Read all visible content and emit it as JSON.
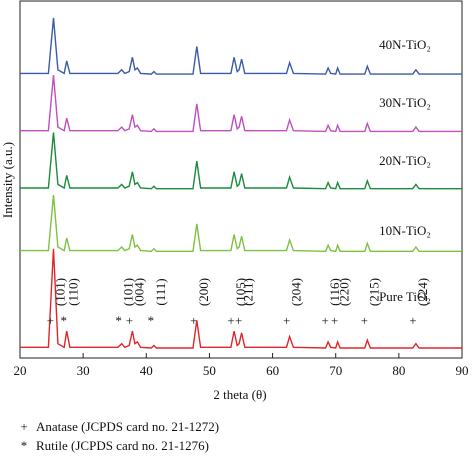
{
  "chart_data": {
    "type": "line",
    "xlabel": "2 theta (θ)",
    "ylabel": "Intensity (a.u.)",
    "xlim": [
      20,
      90
    ],
    "xticks": [
      20,
      30,
      40,
      50,
      60,
      70,
      80,
      90
    ],
    "ylim": [
      0,
      100
    ],
    "x": [
      20,
      24.5,
      25.3,
      26.0,
      27.0,
      27.4,
      27.9,
      35.5,
      36.1,
      36.6,
      37.3,
      37.8,
      38.2,
      38.6,
      39.1,
      40.8,
      41.2,
      41.6,
      47.4,
      48.0,
      48.6,
      53.4,
      53.9,
      54.4,
      54.7,
      55.1,
      55.6,
      62.2,
      62.7,
      63.3,
      68.4,
      68.8,
      69.2,
      70.0,
      70.3,
      70.7,
      74.6,
      75.0,
      75.5,
      82.2,
      82.7,
      83.2,
      90
    ],
    "series": [
      {
        "name": "Pure TiO₂",
        "color": "#e0262a",
        "values": [
          3,
          3,
          30.5,
          4,
          3,
          7.5,
          3,
          3,
          4,
          3,
          3.5,
          7.5,
          4,
          4.5,
          3,
          2.8,
          3.5,
          2.8,
          2.8,
          10.5,
          3,
          3,
          7.5,
          3.5,
          4,
          7,
          3,
          3,
          6,
          3,
          2.8,
          4.5,
          3,
          2.8,
          4.5,
          2.8,
          2.8,
          5,
          2.8,
          2.8,
          4,
          2.8,
          2.8
        ]
      },
      {
        "name": "10N-TiO₂",
        "color": "#7dc242",
        "values": [
          30,
          30,
          45.5,
          31,
          30,
          33.5,
          30,
          30,
          31,
          30,
          30.5,
          34.5,
          31,
          31.5,
          30,
          29.8,
          30.5,
          29.8,
          29.8,
          37.5,
          30,
          30,
          34.5,
          30.5,
          31,
          34,
          30,
          30,
          33,
          30,
          29.8,
          31.5,
          30,
          29.8,
          31.5,
          29.8,
          29.8,
          32,
          29.8,
          29.8,
          31,
          29.8,
          29.8
        ]
      },
      {
        "name": "20N-TiO₂",
        "color": "#1a8c3c",
        "values": [
          47.5,
          47.5,
          63,
          48.5,
          47.5,
          51,
          47.5,
          47.5,
          48.5,
          47.5,
          48,
          52,
          48.5,
          49,
          47.5,
          47.3,
          48,
          47.3,
          47.3,
          55,
          47.5,
          47.5,
          52,
          48,
          48.5,
          51.5,
          47.5,
          47.5,
          50.5,
          47.5,
          47.3,
          49,
          47.5,
          47.3,
          49,
          47.3,
          47.3,
          49.5,
          47.3,
          47.3,
          48.5,
          47.3,
          47.3
        ]
      },
      {
        "name": "30N-TiO₂",
        "color": "#c04fc0",
        "values": [
          63.5,
          63.5,
          79,
          64.5,
          63.5,
          67,
          63.5,
          63.5,
          64.5,
          63.5,
          64,
          68,
          64.5,
          65,
          63.5,
          63.3,
          64,
          63.3,
          63.3,
          71,
          63.5,
          63.5,
          68,
          64,
          64.5,
          67.5,
          63.5,
          63.5,
          66.5,
          63.5,
          63.3,
          65,
          63.5,
          63.3,
          65,
          63.3,
          63.3,
          65.5,
          63.3,
          63.3,
          64.5,
          63.3,
          63.3
        ]
      },
      {
        "name": "40N-TiO₂",
        "color": "#3a5ba8",
        "values": [
          79.5,
          79.5,
          95,
          80.5,
          79.5,
          83,
          79.5,
          79.5,
          80.5,
          79.5,
          80,
          84,
          80.5,
          81,
          79.5,
          79.3,
          80,
          79.3,
          79.3,
          87,
          79.5,
          79.5,
          84,
          80,
          80.5,
          83.5,
          79.5,
          79.5,
          82.5,
          79.5,
          79.3,
          81,
          79.5,
          79.3,
          81,
          79.3,
          79.3,
          81.5,
          79.3,
          79.3,
          80.5,
          79.3,
          79.3
        ]
      }
    ],
    "peak_labels": [
      {
        "x": 25.3,
        "marker": "+",
        "label": "(101)"
      },
      {
        "x": 27.4,
        "marker": "*",
        "label": "(110)"
      },
      {
        "x": 36.1,
        "marker": "*",
        "label": "(101)"
      },
      {
        "x": 37.8,
        "marker": "+",
        "label": "(004)"
      },
      {
        "x": 41.2,
        "marker": "*",
        "label": "(111)"
      },
      {
        "x": 48.0,
        "marker": "+",
        "label": "(200)"
      },
      {
        "x": 53.9,
        "marker": "+",
        "label": "(105)"
      },
      {
        "x": 55.1,
        "marker": "+",
        "label": "(211)"
      },
      {
        "x": 62.7,
        "marker": "+",
        "label": "(204)"
      },
      {
        "x": 68.8,
        "marker": "+",
        "label": "(116)"
      },
      {
        "x": 70.3,
        "marker": "+",
        "label": "(220)"
      },
      {
        "x": 75.0,
        "marker": "+",
        "label": "(215)"
      },
      {
        "x": 82.7,
        "marker": "+",
        "label": "(224)"
      }
    ],
    "notes": [
      {
        "marker": "+",
        "text": "Anatase (JCPDS card no. 21-1272)"
      },
      {
        "marker": "*",
        "text": "Rutile (JCPDS card no. 21-1276)"
      }
    ]
  }
}
